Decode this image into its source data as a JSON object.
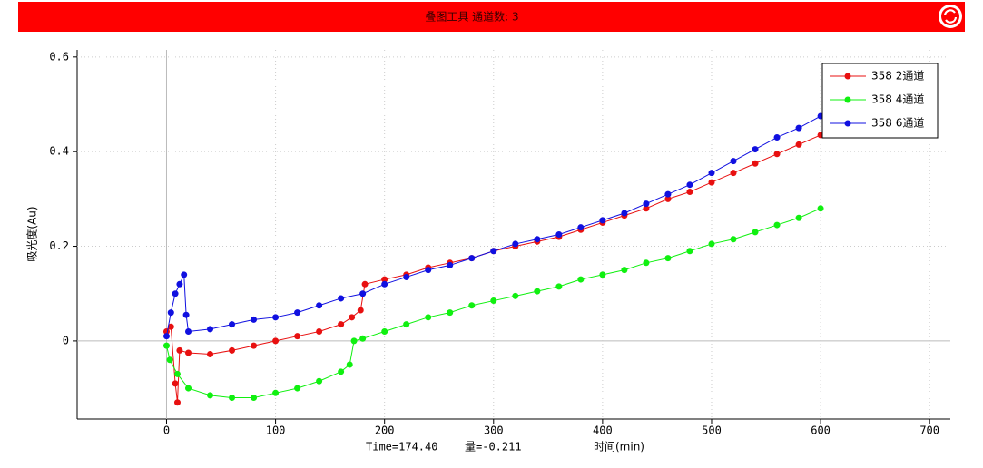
{
  "chart_data": {
    "type": "line",
    "title": "叠图工具 通道数: 3",
    "x_label": "时间(min)",
    "y_label": "吸光度(Au)",
    "status": [
      "Time=174.40",
      "量=-0.211"
    ],
    "xlim": [
      -82,
      719
    ],
    "ylim": [
      -0.165,
      0.615
    ],
    "xticks": [
      0,
      100,
      200,
      300,
      400,
      500,
      600,
      700
    ],
    "yticks": [
      0,
      0.2,
      0.4,
      0.6
    ],
    "grid": true,
    "legend": "upper right",
    "series": [
      {
        "name": "358 2通道",
        "color": "#e81010",
        "x": [
          0,
          4,
          8,
          10,
          12,
          20,
          40,
          60,
          80,
          100,
          120,
          140,
          160,
          170,
          178,
          182,
          200,
          220,
          240,
          260,
          280,
          300,
          320,
          340,
          360,
          380,
          400,
          420,
          440,
          460,
          480,
          500,
          520,
          540,
          560,
          580,
          600
        ],
        "values": [
          0.02,
          0.03,
          -0.09,
          -0.13,
          -0.02,
          -0.025,
          -0.028,
          -0.02,
          -0.01,
          0.0,
          0.01,
          0.02,
          0.035,
          0.05,
          0.065,
          0.12,
          0.13,
          0.14,
          0.155,
          0.165,
          0.175,
          0.19,
          0.2,
          0.21,
          0.22,
          0.235,
          0.25,
          0.265,
          0.28,
          0.3,
          0.315,
          0.335,
          0.355,
          0.375,
          0.395,
          0.415,
          0.435
        ]
      },
      {
        "name": "358 4通道",
        "color": "#10f010",
        "x": [
          0,
          3,
          10,
          20,
          40,
          60,
          80,
          100,
          120,
          140,
          160,
          168,
          172,
          180,
          200,
          220,
          240,
          260,
          280,
          300,
          320,
          340,
          360,
          380,
          400,
          420,
          440,
          460,
          480,
          500,
          520,
          540,
          560,
          580,
          600
        ],
        "values": [
          -0.01,
          -0.04,
          -0.07,
          -0.1,
          -0.115,
          -0.12,
          -0.12,
          -0.11,
          -0.1,
          -0.085,
          -0.065,
          -0.05,
          0.0,
          0.005,
          0.02,
          0.035,
          0.05,
          0.06,
          0.075,
          0.085,
          0.095,
          0.105,
          0.115,
          0.13,
          0.14,
          0.15,
          0.165,
          0.175,
          0.19,
          0.205,
          0.215,
          0.23,
          0.245,
          0.26,
          0.28
        ]
      },
      {
        "name": "358 6通道",
        "color": "#1010e0",
        "x": [
          0,
          4,
          8,
          12,
          16,
          18,
          20,
          40,
          60,
          80,
          100,
          120,
          140,
          160,
          180,
          200,
          220,
          240,
          260,
          280,
          300,
          320,
          340,
          360,
          380,
          400,
          420,
          440,
          460,
          480,
          500,
          520,
          540,
          560,
          580,
          600
        ],
        "values": [
          0.01,
          0.06,
          0.1,
          0.12,
          0.14,
          0.055,
          0.02,
          0.025,
          0.035,
          0.045,
          0.05,
          0.06,
          0.075,
          0.09,
          0.1,
          0.12,
          0.135,
          0.15,
          0.16,
          0.175,
          0.19,
          0.205,
          0.215,
          0.225,
          0.24,
          0.255,
          0.27,
          0.29,
          0.31,
          0.33,
          0.355,
          0.38,
          0.405,
          0.43,
          0.45,
          0.475
        ]
      }
    ]
  }
}
